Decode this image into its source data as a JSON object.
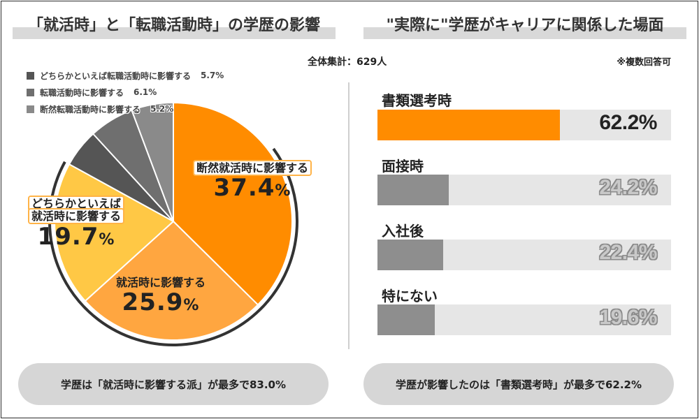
{
  "left_title": "「就活時」と「転職活動時」の学歴の影響",
  "right_title": "\"実際に\"学歴がキャリアに関係した場面",
  "total_label": "全体集計：629人",
  "multi_label": "※複数回答可",
  "colors": {
    "orange": "#ff8c00",
    "light_orange": "#ffa640",
    "yellow": "#ffc845",
    "gray1": "#8a8a8a",
    "gray2": "#6f6f6f",
    "gray3": "#555555",
    "bar_gray": "#8e8e8e",
    "bar_bg": "#e6e6e6"
  },
  "chart_data": [
    {
      "type": "pie",
      "title": "「就活時」と「転職活動時」の学歴の影響",
      "slices": [
        {
          "label": "断然就活時に影響する",
          "value": 37.4,
          "display": "37.4%"
        },
        {
          "label": "就活時に影響する",
          "value": 25.9,
          "display": "25.9%"
        },
        {
          "label": "どちらかといえば就活時に影響する",
          "value": 19.7,
          "display": "19.7%"
        },
        {
          "label": "どちらかといえば転職活動時に影響する",
          "value": 5.7,
          "display": "5.7%"
        },
        {
          "label": "転職活動時に影響する",
          "value": 6.1,
          "display": "6.1%"
        },
        {
          "label": "断然転職活動時に影響する",
          "value": 5.2,
          "display": "5.2%"
        }
      ]
    },
    {
      "type": "bar",
      "title": "\"実際に\"学歴がキャリアに関係した場面",
      "categories": [
        "書類選考時",
        "面接時",
        "入社後",
        "特にない"
      ],
      "values": [
        62.2,
        24.2,
        22.4,
        19.6
      ],
      "labels": [
        "62.2%",
        "24.2%",
        "22.4%",
        "19.6%"
      ],
      "xlim": [
        0,
        100
      ]
    }
  ],
  "pie_labels": {
    "s0_text": "断然就活時に影響する",
    "s0_num": "37.4",
    "s1_text": "就活時に影響する",
    "s1_num": "25.9",
    "s2_text1": "どちらかといえば",
    "s2_text2": "就活時に影響する",
    "s2_num": "19.7",
    "pct_sign": "%"
  },
  "legend": [
    {
      "label": "どちらかといえば転職活動時に影響する",
      "pct": "5.7%"
    },
    {
      "label": "転職活動時に影響する",
      "pct": "6.1%"
    },
    {
      "label": "断然転職活動時に影響する",
      "pct": "5.2%"
    }
  ],
  "summary_left": "学歴は「就活時に影響する派」が最多で83.0%",
  "summary_right": "学歴が影響したのは「書類選考時」が最多で62.2%"
}
